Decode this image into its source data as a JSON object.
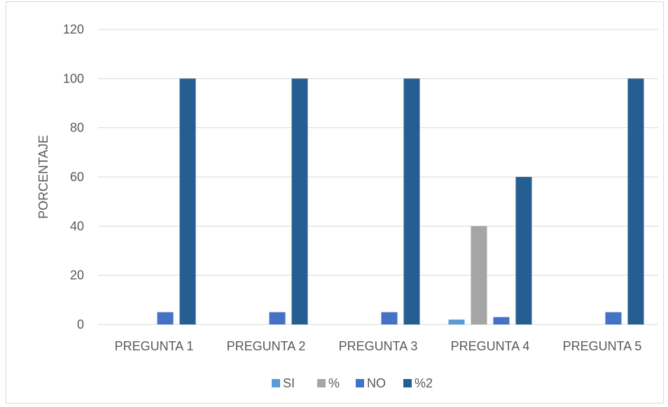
{
  "chart_data": {
    "type": "bar",
    "title": "",
    "xlabel": "",
    "ylabel": "PORCENTAJE",
    "ylim": [
      0,
      120
    ],
    "yticks": [
      0,
      20,
      40,
      60,
      80,
      100,
      120
    ],
    "grid": true,
    "legend_position": "bottom",
    "categories": [
      "PREGUNTA 1",
      "PREGUNTA 2",
      "PREGUNTA 3",
      "PREGUNTA 4",
      "PREGUNTA 5"
    ],
    "series": [
      {
        "name": "SI",
        "color": "#5b9bd5",
        "values": [
          0,
          0,
          0,
          2,
          0
        ]
      },
      {
        "name": "%",
        "color": "#a5a5a5",
        "values": [
          0,
          0,
          0,
          40,
          0
        ]
      },
      {
        "name": "NO",
        "color": "#4472c4",
        "values": [
          5,
          5,
          5,
          3,
          5
        ]
      },
      {
        "name": "%2",
        "color": "#255e91",
        "values": [
          100,
          100,
          100,
          60,
          100
        ]
      }
    ]
  }
}
